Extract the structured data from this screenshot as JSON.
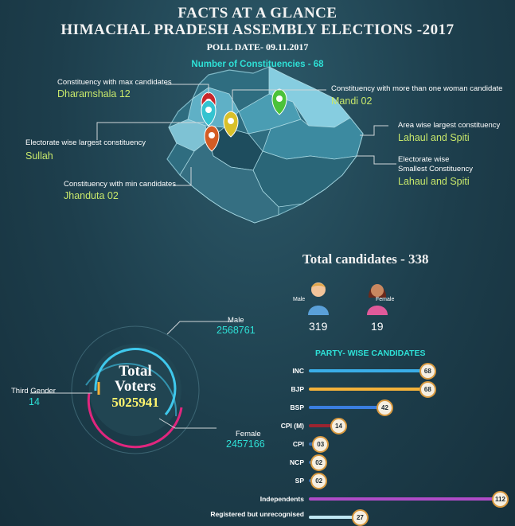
{
  "header": {
    "title_line1": "FACTS AT A GLANCE",
    "title_line2": "HIMACHAL PRADESH ASSEMBLY ELECTIONS -2017",
    "poll_date": "POLL DATE- 09.11.2017"
  },
  "map": {
    "constituencies_title": "Number of Constituencies - 68",
    "callouts": {
      "max_candidates": {
        "label": "Constituency with max candidates",
        "value": "Dharamshala  12"
      },
      "women_candidate": {
        "label": "Constituency with more than one woman candidate",
        "value": "Mandi  02"
      },
      "largest_electorate": {
        "label": "Electorate wise largest constituency",
        "value": "Sullah"
      },
      "largest_area": {
        "label": "Area wise largest constituency",
        "value": "Lahaul and Spiti"
      },
      "smallest_electorate_line1": "Electorate wise",
      "smallest_electorate_line2": "Smallest Constituency",
      "smallest_electorate_value": "Lahaul and Spiti",
      "min_candidates": {
        "label": "Constituency with min candidates",
        "value": "Jhanduta  02"
      }
    },
    "pin_colors": [
      "#c8262a",
      "#34c3d0",
      "#d9c02a",
      "#d45c24",
      "#4cc23a"
    ]
  },
  "candidates": {
    "title": "Total candidates - 338",
    "male_label": "Male",
    "male_count": "319",
    "female_label": "Female",
    "female_count": "19"
  },
  "voters": {
    "title_line1": "Total",
    "title_line2": "Voters",
    "total": "5025941",
    "male_label": "Male",
    "male_count": "2568761",
    "female_label": "Female",
    "female_count": "2457166",
    "third_label": "Third Gender",
    "third_count": "14"
  },
  "chart_data": {
    "type": "bar",
    "title": "PARTY- WISE CANDIDATES",
    "categories": [
      "INC",
      "BJP",
      "BSP",
      "CPI (M)",
      "CPI",
      "NCP",
      "SP",
      "Independents",
      "Registered but unrecognised"
    ],
    "values": [
      68,
      68,
      42,
      14,
      3,
      2,
      2,
      112,
      27
    ],
    "value_labels": [
      "68",
      "68",
      "42",
      "14",
      "03",
      "02",
      "02",
      "112",
      "27"
    ],
    "colors": [
      "#3aaee8",
      "#f4b23a",
      "#3a7ee0",
      "#9c2430",
      "#3a6fb0",
      "#3a6fb0",
      "#3a6fb0",
      "#b04cc8",
      "#bfe6f2"
    ],
    "xlim": [
      0,
      112
    ]
  }
}
